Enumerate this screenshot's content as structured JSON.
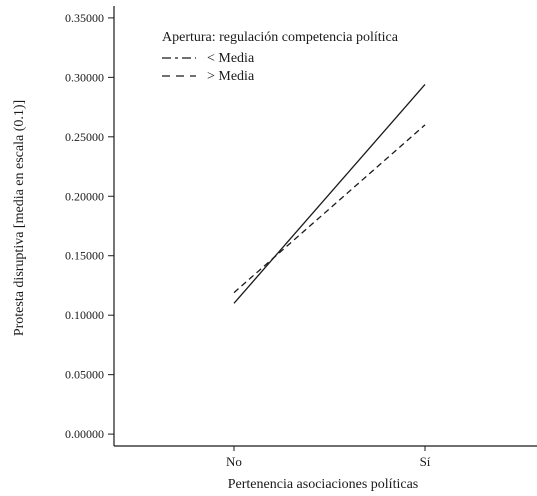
{
  "chart_data": {
    "type": "line",
    "title": "",
    "xlabel": "Pertenencia asociaciones políticas",
    "ylabel": "Protesta disruptiva [media en escala (0.1)]",
    "categories": [
      "No",
      "Sí"
    ],
    "ylim": [
      -0.01,
      0.36
    ],
    "yticks": [
      0.0,
      0.05,
      0.1,
      0.15,
      0.2,
      0.25,
      0.3,
      0.35
    ],
    "ytick_labels": [
      "0.00000",
      "0.05000",
      "0.10000",
      "0.15000",
      "0.20000",
      "0.25000",
      "0.30000",
      "0.35000"
    ],
    "legend": {
      "title": "Apertura: regulación competencia política",
      "placement": "top-left"
    },
    "grid": false,
    "series": [
      {
        "name": "< Media",
        "values": [
          0.11,
          0.294
        ],
        "style": "solid",
        "color": "#1a1a1a"
      },
      {
        "name": "> Media",
        "values": [
          0.119,
          0.26
        ],
        "style": "dashed",
        "color": "#1a1a1a"
      }
    ]
  }
}
